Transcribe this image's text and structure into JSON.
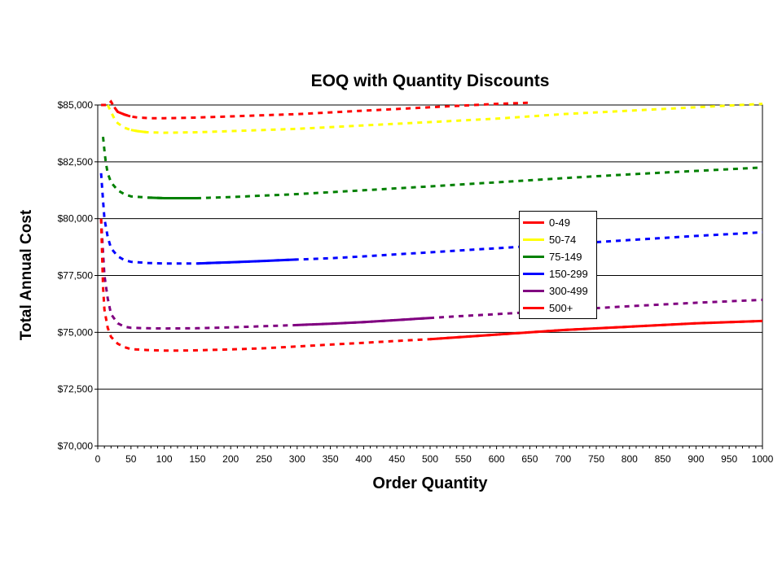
{
  "chart_data": {
    "type": "line",
    "title": "EOQ with Quantity Discounts",
    "xlabel": "Order Quantity",
    "ylabel": "Total Annual Cost",
    "xlim": [
      0,
      1000
    ],
    "ylim": [
      70000,
      85000
    ],
    "x_ticks": [
      "0",
      "50",
      "100",
      "150",
      "200",
      "250",
      "300",
      "350",
      "400",
      "450",
      "500",
      "550",
      "600",
      "650",
      "700",
      "750",
      "800",
      "850",
      "900",
      "950",
      "1000"
    ],
    "y_ticks": [
      "$70,000",
      "$72,500",
      "$75,000",
      "$77,500",
      "$80,000",
      "$82,500",
      "$85,000"
    ],
    "y_tick_values": [
      70000,
      72500,
      75000,
      77500,
      80000,
      82500,
      85000
    ],
    "grid": "horizontal",
    "legend_position": "center-right",
    "plot_background": "#ffffff",
    "series": [
      {
        "name": "0-49",
        "color": "#ff0000",
        "solid_range": [
          25,
          49
        ],
        "x": [
          5,
          10,
          15,
          20,
          25,
          30,
          40,
          49,
          60,
          80,
          100,
          125,
          150,
          200,
          300,
          400,
          500,
          600,
          650
        ],
        "y": [
          85000,
          85000,
          85000,
          85150,
          84900,
          84700,
          84580,
          84500,
          84450,
          84420,
          84420,
          84430,
          84450,
          84500,
          84600,
          84750,
          84900,
          85050,
          85100
        ]
      },
      {
        "name": "50-74",
        "color": "#ffff00",
        "solid_range": [
          50,
          74
        ],
        "x": [
          15,
          20,
          25,
          30,
          40,
          50,
          60,
          74,
          100,
          150,
          200,
          300,
          400,
          500,
          600,
          700,
          800,
          900,
          1000
        ],
        "y": [
          85000,
          84700,
          84400,
          84200,
          84000,
          83900,
          83850,
          83800,
          83780,
          83800,
          83850,
          83950,
          84100,
          84250,
          84400,
          84600,
          84750,
          84900,
          85050
        ]
      },
      {
        "name": "75-149",
        "color": "#008000",
        "solid_range": [
          75,
          149
        ],
        "x": [
          8,
          10,
          12,
          15,
          20,
          30,
          40,
          50,
          75,
          100,
          125,
          149,
          200,
          300,
          400,
          500,
          600,
          700,
          800,
          900,
          1000
        ],
        "y": [
          83600,
          83000,
          82500,
          82000,
          81600,
          81250,
          81080,
          80980,
          80930,
          80900,
          80900,
          80900,
          80950,
          81080,
          81250,
          81420,
          81600,
          81780,
          81950,
          82100,
          82250
        ]
      },
      {
        "name": "150-299",
        "color": "#0000ff",
        "solid_range": [
          150,
          299
        ],
        "x": [
          5,
          8,
          10,
          15,
          20,
          30,
          40,
          50,
          75,
          100,
          150,
          200,
          250,
          299,
          350,
          400,
          500,
          600,
          700,
          800,
          900,
          1000
        ],
        "y": [
          82000,
          80800,
          80000,
          79200,
          78700,
          78350,
          78180,
          78100,
          78050,
          78030,
          78030,
          78080,
          78140,
          78200,
          78260,
          78340,
          78520,
          78700,
          78880,
          79060,
          79240,
          79400
        ]
      },
      {
        "name": "300-499",
        "color": "#800080",
        "solid_range": [
          300,
          499
        ],
        "x": [
          5,
          8,
          10,
          15,
          20,
          30,
          40,
          50,
          75,
          100,
          150,
          200,
          250,
          300,
          350,
          400,
          450,
          499,
          550,
          600,
          700,
          800,
          900,
          1000
        ],
        "y": [
          80000,
          78500,
          77500,
          76500,
          75800,
          75400,
          75250,
          75200,
          75180,
          75170,
          75180,
          75220,
          75270,
          75320,
          75380,
          75450,
          75540,
          75630,
          75720,
          75800,
          75980,
          76150,
          76300,
          76430
        ]
      },
      {
        "name": "500+",
        "color": "#ff0000",
        "solid_range": [
          500,
          1000
        ],
        "x": [
          5,
          8,
          10,
          15,
          20,
          30,
          40,
          50,
          75,
          100,
          125,
          150,
          200,
          250,
          300,
          350,
          400,
          450,
          500,
          600,
          700,
          800,
          900,
          1000
        ],
        "y": [
          80000,
          77000,
          76000,
          75200,
          74800,
          74500,
          74350,
          74260,
          74220,
          74200,
          74200,
          74210,
          74250,
          74300,
          74380,
          74460,
          74540,
          74620,
          74700,
          74900,
          75100,
          75250,
          75400,
          75500
        ]
      }
    ]
  }
}
